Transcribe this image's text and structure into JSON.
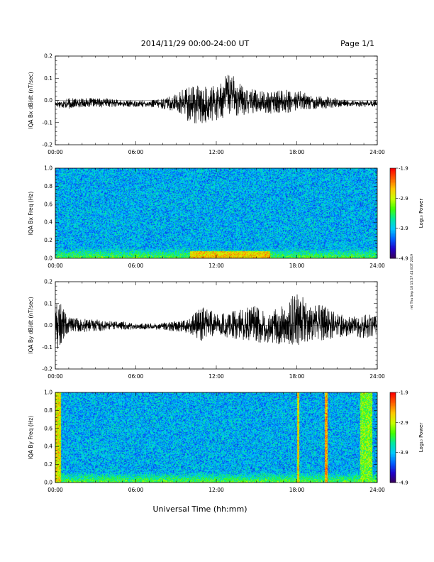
{
  "header": {
    "title": "2014/11/29  00:00-24:00 UT",
    "page": "Page 1/1"
  },
  "footer": {
    "xlabel": "Universal Time (hh:mm)"
  },
  "side_note": "ret Thu Sep 18 15:57:41 EDT 2019",
  "colors": {
    "trace": "#000000",
    "colormap": [
      "#3a0050",
      "#2000c8",
      "#0060ff",
      "#00c8ff",
      "#00e8a0",
      "#40ff00",
      "#c8ff00",
      "#ffc800",
      "#ff6000",
      "#ff0000"
    ]
  },
  "chart_data": [
    {
      "type": "line",
      "ylabel": "IQA Bx dB/dt (nT/sec)",
      "xlim": [
        "00:00",
        "24:00"
      ],
      "ylim": [
        -0.2,
        0.2
      ],
      "xticks": [
        "00:00",
        "06:00",
        "12:00",
        "18:00",
        "24:00"
      ],
      "yticks": [
        "-0.2",
        "-0.1",
        "0.0",
        "0.1",
        "0.2"
      ],
      "envelope": {
        "hours": [
          0,
          1,
          2,
          3,
          4,
          5,
          6,
          7,
          8,
          9,
          10,
          11,
          12,
          13,
          14,
          15,
          16,
          17,
          18,
          19,
          20,
          21,
          22,
          23,
          24
        ],
        "max": [
          0.0,
          0.01,
          0.01,
          0.01,
          0.01,
          0.0,
          0.0,
          0.0,
          0.01,
          0.03,
          0.08,
          0.06,
          0.07,
          0.13,
          0.06,
          0.05,
          0.04,
          0.05,
          0.05,
          0.03,
          0.02,
          0.01,
          0.0,
          0.0,
          0.0
        ],
        "min": [
          -0.03,
          -0.04,
          -0.03,
          -0.03,
          -0.03,
          -0.03,
          -0.03,
          -0.03,
          -0.04,
          -0.05,
          -0.1,
          -0.11,
          -0.09,
          -0.07,
          -0.07,
          -0.06,
          -0.06,
          -0.06,
          -0.05,
          -0.04,
          -0.04,
          -0.03,
          -0.03,
          -0.03,
          -0.03
        ]
      }
    },
    {
      "type": "heatmap",
      "ylabel": "IQA Bx Freq (Hz)",
      "xlim": [
        "00:00",
        "24:00"
      ],
      "ylim": [
        0.0,
        1.0
      ],
      "xticks": [
        "00:00",
        "06:00",
        "12:00",
        "18:00",
        "24:00"
      ],
      "yticks": [
        "0.0",
        "0.2",
        "0.4",
        "0.6",
        "0.8",
        "1.0"
      ],
      "colorbar": {
        "label": "Log₁₀ Power",
        "ticks": [
          "-1.9",
          "-2.9",
          "-3.9",
          "-4.9"
        ],
        "range": [
          -4.9,
          -1.9
        ]
      },
      "features": [
        {
          "description": "enhanced low-frequency power",
          "hours": [
            10,
            16
          ],
          "freq": [
            0.0,
            0.08
          ],
          "log_power": -2.4
        }
      ]
    },
    {
      "type": "line",
      "ylabel": "IQA By dB/dt (nT/sec)",
      "xlim": [
        "00:00",
        "24:00"
      ],
      "ylim": [
        -0.2,
        0.2
      ],
      "xticks": [
        "00:00",
        "06:00",
        "12:00",
        "18:00",
        "24:00"
      ],
      "yticks": [
        "-0.2",
        "-0.1",
        "0.0",
        "0.1",
        "0.2"
      ],
      "envelope": {
        "hours": [
          0,
          1,
          2,
          3,
          4,
          5,
          6,
          7,
          8,
          9,
          10,
          11,
          12,
          13,
          14,
          15,
          16,
          17,
          18,
          19,
          20,
          21,
          22,
          23,
          24
        ],
        "max": [
          0.14,
          0.04,
          0.03,
          0.03,
          0.02,
          0.02,
          0.01,
          0.01,
          0.01,
          0.02,
          0.03,
          0.1,
          0.05,
          0.06,
          0.08,
          0.09,
          0.07,
          0.1,
          0.15,
          0.11,
          0.09,
          0.06,
          0.04,
          0.05,
          0.05
        ],
        "min": [
          -0.13,
          -0.03,
          -0.03,
          -0.03,
          -0.02,
          -0.02,
          -0.02,
          -0.02,
          -0.02,
          -0.03,
          -0.04,
          -0.08,
          -0.05,
          -0.06,
          -0.07,
          -0.08,
          -0.08,
          -0.09,
          -0.1,
          -0.08,
          -0.07,
          -0.06,
          -0.05,
          -0.06,
          -0.05
        ]
      }
    },
    {
      "type": "heatmap",
      "ylabel": "IQA By Freq (Hz)",
      "xlim": [
        "00:00",
        "24:00"
      ],
      "ylim": [
        0.0,
        1.0
      ],
      "xticks": [
        "00:00",
        "06:00",
        "12:00",
        "18:00",
        "24:00"
      ],
      "yticks": [
        "0.0",
        "0.2",
        "0.4",
        "0.6",
        "0.8",
        "1.0"
      ],
      "colorbar": {
        "label": "Log₁₀ Power",
        "ticks": [
          "-1.9",
          "-2.9",
          "-3.9",
          "-4.9"
        ],
        "range": [
          -4.9,
          -1.9
        ]
      },
      "features": [
        {
          "description": "broadband stripe",
          "hours": [
            0.0,
            0.4
          ],
          "freq": [
            0.0,
            1.0
          ],
          "log_power": -2.6
        },
        {
          "description": "narrow broadband line",
          "hours": [
            18.0,
            18.15
          ],
          "freq": [
            0.0,
            1.0
          ],
          "log_power": -2.5
        },
        {
          "description": "narrow broadband line",
          "hours": [
            20.05,
            20.25
          ],
          "freq": [
            0.0,
            1.0
          ],
          "log_power": -2.3
        },
        {
          "description": "broadband band",
          "hours": [
            22.7,
            23.6
          ],
          "freq": [
            0.0,
            1.0
          ],
          "log_power": -3.0
        }
      ]
    }
  ]
}
